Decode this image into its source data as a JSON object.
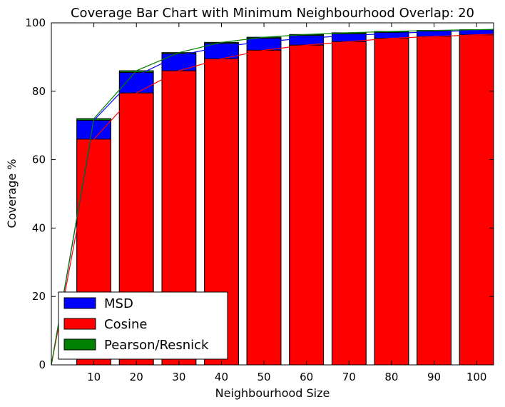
{
  "chart_data": {
    "type": "bar",
    "title": "Coverage Bar Chart with Minimum Neighbourhood Overlap: 20",
    "xlabel": "Neighbourhood Size",
    "ylabel": "Coverage %",
    "xlim": [
      0,
      104
    ],
    "ylim": [
      0,
      100
    ],
    "xticks": [
      10,
      20,
      30,
      40,
      50,
      60,
      70,
      80,
      90,
      100
    ],
    "yticks": [
      0,
      20,
      40,
      60,
      80,
      100
    ],
    "categories": [
      10,
      20,
      30,
      40,
      50,
      60,
      70,
      80,
      90,
      100
    ],
    "series": [
      {
        "name": "MSD",
        "color": "#0000ff",
        "bar_values": [
          71.5,
          85.5,
          91.0,
          94.0,
          95.5,
          96.3,
          96.8,
          97.2,
          97.6,
          97.8
        ],
        "line_x": [
          0,
          10,
          20,
          30,
          40,
          50,
          60,
          70,
          80,
          90,
          100,
          104
        ],
        "line_y": [
          0,
          71.5,
          84.5,
          90.5,
          93.0,
          94.5,
          95.5,
          96.3,
          96.9,
          97.4,
          97.8,
          97.9
        ]
      },
      {
        "name": "Cosine",
        "color": "#ff0000",
        "bar_values": [
          66.0,
          79.5,
          86.0,
          89.5,
          92.0,
          93.5,
          94.5,
          95.5,
          96.0,
          96.5
        ],
        "line_x": [
          0,
          10,
          20,
          30,
          40,
          50,
          60,
          70,
          80,
          90,
          100,
          104
        ],
        "line_y": [
          0,
          66.0,
          79.5,
          86.0,
          89.5,
          92.0,
          93.5,
          94.5,
          95.5,
          96.0,
          96.5,
          96.7
        ]
      },
      {
        "name": "Pearson/Resnick",
        "color": "#008000",
        "bar_values": [
          72.0,
          86.0,
          91.3,
          94.3,
          95.8,
          96.6,
          97.1,
          97.5,
          97.8,
          98.0
        ],
        "line_x": [
          0,
          10,
          20,
          30,
          40,
          50,
          60,
          70,
          80,
          90,
          100,
          104
        ],
        "line_y": [
          0,
          72.0,
          86.0,
          91.3,
          94.3,
          95.8,
          96.6,
          97.1,
          97.5,
          97.8,
          98.0,
          98.1
        ]
      }
    ],
    "bar_draw_order": [
      "Pearson/Resnick",
      "MSD",
      "Cosine"
    ],
    "legend_position": "lower-left"
  }
}
